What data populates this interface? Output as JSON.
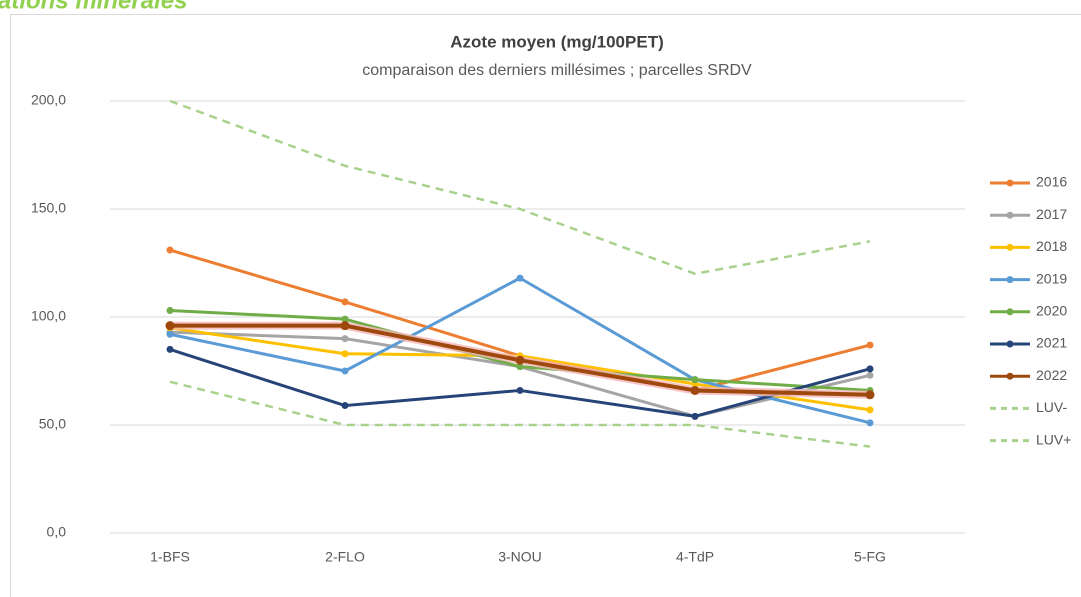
{
  "page_title": "ations minérales",
  "chart_data": {
    "type": "line",
    "title": "Azote moyen (mg/100PET)",
    "subtitle": "comparaison des derniers millésimes ; parcelles SRDV",
    "categories": [
      "1-BFS",
      "2-FLO",
      "3-NOU",
      "4-TdP",
      "5-FG"
    ],
    "series": [
      {
        "name": "2016",
        "color": "#ed7d31",
        "values": [
          131,
          107,
          82,
          66,
          87
        ]
      },
      {
        "name": "2017",
        "color": "#a5a5a5",
        "values": [
          93,
          90,
          77,
          54,
          73
        ]
      },
      {
        "name": "2018",
        "color": "#ffc000",
        "values": [
          95,
          83,
          82,
          69,
          57
        ]
      },
      {
        "name": "2019",
        "color": "#5b9bd5",
        "values": [
          92,
          75,
          118,
          71,
          51
        ]
      },
      {
        "name": "2020",
        "color": "#70ad47",
        "values": [
          103,
          99,
          77,
          71,
          66
        ]
      },
      {
        "name": "2021",
        "color": "#264478",
        "values": [
          85,
          59,
          66,
          54,
          76
        ]
      },
      {
        "name": "2022",
        "color": "#9e480e",
        "values": [
          96,
          96,
          80,
          66,
          64
        ]
      },
      {
        "name": "LUV-",
        "color": "#a9d18e",
        "dashed": true,
        "values": [
          70,
          50,
          50,
          50,
          40
        ]
      },
      {
        "name": "LUV+",
        "color": "#a9d18e",
        "dashed": true,
        "values": [
          200,
          170,
          150,
          120,
          135
        ]
      }
    ],
    "ylim": [
      0,
      200
    ],
    "yticks": [
      {
        "value": 0,
        "label": "0,0"
      },
      {
        "value": 50,
        "label": "50,0"
      },
      {
        "value": 100,
        "label": "100,0"
      },
      {
        "value": 150,
        "label": "150,0"
      },
      {
        "value": 200,
        "label": "200,0"
      }
    ],
    "grid": true,
    "legend": "right"
  }
}
